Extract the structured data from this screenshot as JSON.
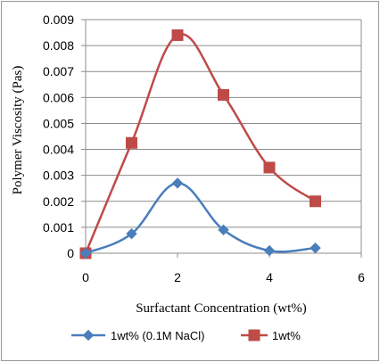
{
  "chart_data": {
    "type": "line",
    "xlabel": "Surfactant Concentration (wt%)",
    "ylabel": "Polymer Viscosity (Pas)",
    "xlim": [
      0,
      6
    ],
    "ylim": [
      0,
      0.009
    ],
    "x_ticks": [
      "0",
      "2",
      "4",
      "6"
    ],
    "y_ticks": [
      "0",
      "0.001",
      "0.002",
      "0.003",
      "0.004",
      "0.005",
      "0.006",
      "0.007",
      "0.008",
      "0.009"
    ],
    "grid": "horizontal",
    "legend_position": "bottom",
    "smooth": true,
    "series": [
      {
        "name": "1wt% (0.1M NaCl)",
        "color": "#4a7ebb",
        "marker": "diamond",
        "x": [
          0,
          1,
          2,
          3,
          4,
          5
        ],
        "y": [
          0,
          0.00075,
          0.0027,
          0.0009,
          0.0001,
          0.0002
        ]
      },
      {
        "name": "1wt%",
        "color": "#be4b48",
        "marker": "square",
        "x": [
          0,
          1,
          2,
          3,
          4,
          5
        ],
        "y": [
          0,
          0.00425,
          0.0084,
          0.0061,
          0.0033,
          0.002
        ]
      }
    ]
  }
}
